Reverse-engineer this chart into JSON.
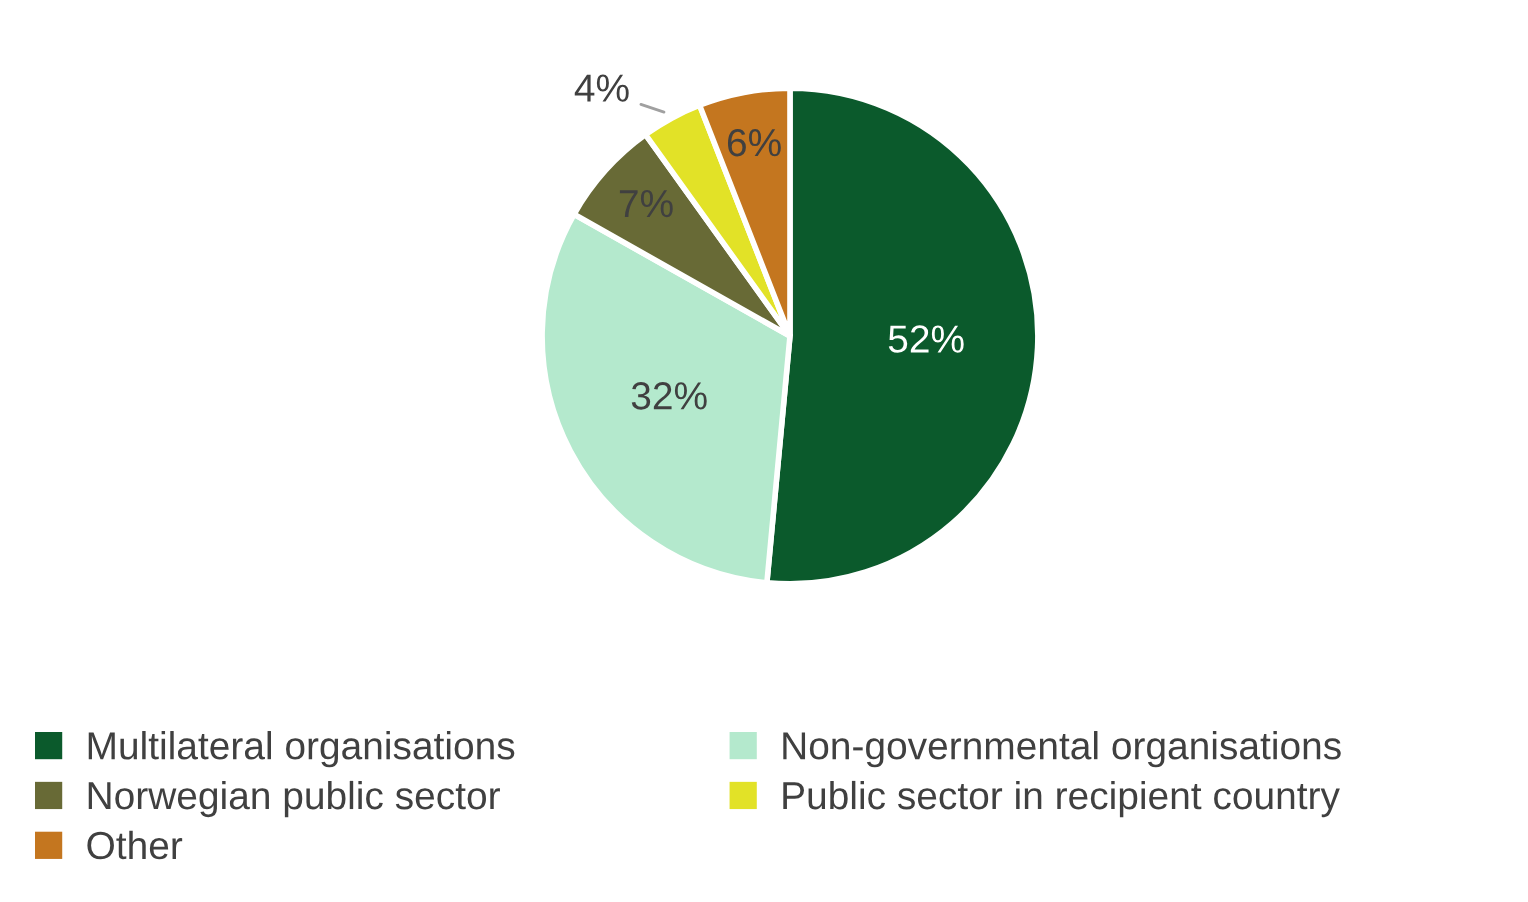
{
  "chart_data": {
    "type": "pie",
    "categories": [
      "Multilateral organisations",
      "Non-governmental organisations",
      "Norwegian public sector",
      "Public sector in recipient country",
      "Other"
    ],
    "values": [
      52,
      32,
      7,
      4,
      6
    ],
    "colors": [
      "#0b5a2c",
      "#b4e9cd",
      "#686a36",
      "#e2e227",
      "#c4761f"
    ],
    "value_labels": [
      "52%",
      "32%",
      "7%",
      "4%",
      "6%"
    ],
    "legend": "bottom"
  }
}
